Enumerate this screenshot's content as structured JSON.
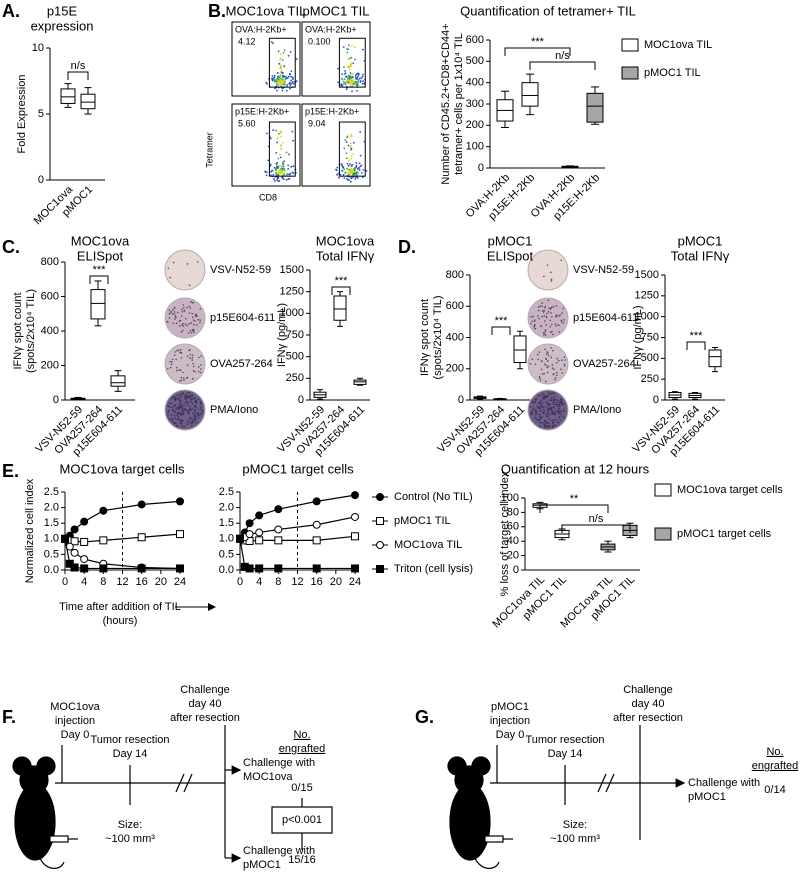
{
  "panel_labels": [
    "A.",
    "B.",
    "C.",
    "D.",
    "E.",
    "F.",
    "G."
  ],
  "flow": {
    "columns": [
      "MOC1ova TIL",
      "pMOC1 TIL"
    ],
    "y_label": "Tetramer",
    "x_label": "CD8",
    "gates": [
      {
        "label": "OVA:H-2Kb+",
        "value": "4.12"
      },
      {
        "label": "OVA:H-2Kb+",
        "value": "0.100"
      },
      {
        "label": "p15E:H-2Kb+",
        "value": "5.60"
      },
      {
        "label": "p15E:H-2Kb+",
        "value": "9.04"
      }
    ]
  },
  "elispot_c": [
    "VSV-N52-59",
    "p15E604-611",
    "OVA257-264",
    "PMA/Iono"
  ],
  "elispot_d": [
    "VSV-N52-59",
    "p15E604-611",
    "OVA257-264",
    "PMA/Iono"
  ],
  "chart_data": [
    {
      "type": "box",
      "title": [
        "p15E",
        "expression"
      ],
      "y_label": [
        "Fold Expression"
      ],
      "categories": [
        "MOC1ova",
        "pMOC1"
      ],
      "series": [
        {
          "color": "#ffffff",
          "values": [
            [
              5.5,
              5.8,
              6.3,
              6.9,
              7.3
            ],
            [
              5.0,
              5.4,
              5.9,
              6.5,
              7.0
            ]
          ]
        }
      ],
      "ylim": [
        0,
        10
      ],
      "yticks": [
        0,
        5,
        10
      ],
      "annotations": [
        "n/s"
      ]
    },
    {
      "type": "box",
      "title": [
        "Quantification of tetramer+ TIL"
      ],
      "y_label": [
        "Number of CD45.2+CD8+CD44+",
        "tetramer+ cells per 1x10⁴ TIL"
      ],
      "categories": [
        "OVA:H-2Kb",
        "p15E:H-2Kb",
        "OVA:H-2Kb",
        "p15E:H-2Kb"
      ],
      "series": [
        {
          "name": "MOC1ova TIL",
          "color": "#ffffff",
          "values": [
            [
              190,
              220,
              270,
              320,
              360
            ],
            [
              250,
              290,
              340,
              400,
              440
            ],
            null,
            null
          ]
        },
        {
          "name": "pMOC1 TIL",
          "color": "#a6a6a6",
          "values": [
            null,
            null,
            [
              0,
              2,
              5,
              8,
              10
            ],
            [
              205,
              215,
              290,
              350,
              380
            ]
          ]
        }
      ],
      "ylim": [
        0,
        600
      ],
      "yticks": [
        0,
        100,
        200,
        300,
        400,
        500,
        600
      ],
      "annotations": [
        "***",
        "n/s"
      ]
    },
    {
      "type": "box",
      "title": [
        "MOC1ova",
        "ELISpot"
      ],
      "y_label": [
        "IFNγ spot count",
        "(spots/2x10⁴ TIL)"
      ],
      "categories": [
        "VSV-N52-59",
        "OVA257-264",
        "p15E604-611"
      ],
      "series": [
        {
          "color": "#ffffff",
          "values": [
            [
              0,
              3,
              6,
              10,
              15
            ],
            [
              430,
              470,
              560,
              640,
              690
            ],
            [
              50,
              80,
              100,
              140,
              170
            ]
          ]
        }
      ],
      "ylim": [
        0,
        800
      ],
      "yticks": [
        0,
        200,
        400,
        600,
        800
      ],
      "annotations": [
        "***"
      ]
    },
    {
      "type": "box",
      "title": [
        "MOC1ova",
        "Total IFNγ"
      ],
      "y_label": [
        "IFNγ (pg/mL)"
      ],
      "categories": [
        "VSV-N52-59",
        "OVA257-264",
        "p15E604-611"
      ],
      "series": [
        {
          "color": "#ffffff",
          "values": [
            [
              10,
              30,
              60,
              90,
              120
            ],
            [
              850,
              920,
              1050,
              1200,
              1250
            ],
            [
              170,
              180,
              210,
              230,
              250
            ]
          ]
        }
      ],
      "ylim": [
        0,
        1500
      ],
      "yticks": [
        0,
        250,
        500,
        750,
        1000,
        1250,
        1500
      ],
      "annotations": [
        "***"
      ]
    },
    {
      "type": "box",
      "title": [
        "pMOC1",
        "ELISpot"
      ],
      "y_label": [
        "IFNγ spot count",
        "(spots/2x10⁴ TIL)"
      ],
      "categories": [
        "VSV-N52-59",
        "OVA257-264",
        "p15E604-611"
      ],
      "series": [
        {
          "color": "#ffffff",
          "values": [
            [
              5,
              10,
              15,
              20,
              25
            ],
            [
              0,
              2,
              5,
              8,
              10
            ],
            [
              200,
              240,
              320,
              410,
              440
            ]
          ]
        }
      ],
      "ylim": [
        0,
        800
      ],
      "yticks": [
        0,
        200,
        400,
        600,
        800
      ],
      "annotations": [
        "***"
      ]
    },
    {
      "type": "box",
      "title": [
        "pMOC1",
        "Total IFNγ"
      ],
      "y_label": [
        "IFNγ (pg/mL)"
      ],
      "categories": [
        "VSV-N52-59",
        "OVA257-264",
        "p15E604-611"
      ],
      "series": [
        {
          "color": "#ffffff",
          "values": [
            [
              10,
              30,
              60,
              90,
              100
            ],
            [
              10,
              30,
              55,
              80,
              90
            ],
            [
              340,
              400,
              520,
              600,
              630
            ]
          ]
        }
      ],
      "ylim": [
        0,
        1500
      ],
      "yticks": [
        0,
        250,
        500,
        750,
        1000,
        1250,
        1500
      ],
      "annotations": [
        "***"
      ]
    },
    {
      "type": "line",
      "title": [
        "MOC1ova target cells"
      ],
      "y_label": [
        "Normalized cell index"
      ],
      "x_label": [
        "Time after addition of TIL",
        "(hours)"
      ],
      "x": [
        0,
        1,
        2,
        4,
        8,
        16,
        24
      ],
      "xlim": [
        0,
        24
      ],
      "xticks": [
        0,
        4,
        8,
        12,
        16,
        20,
        24
      ],
      "vline": 12,
      "ylim": [
        0,
        2.5
      ],
      "yticks": [
        {
          "value": 0,
          "label": "0.0"
        },
        0.5,
        {
          "value": 1,
          "label": "1.0"
        },
        1.5,
        {
          "value": 2,
          "label": "2.0"
        },
        2.5
      ],
      "series": [
        {
          "color": "#000000",
          "marker": "circle",
          "marker_fill": "#000000",
          "values": [
            1.0,
            1.1,
            1.3,
            1.55,
            1.9,
            2.1,
            2.2
          ]
        },
        {
          "color": "#000000",
          "marker": "square",
          "marker_fill": "#ffffff",
          "values": [
            1.0,
            0.95,
            0.92,
            0.9,
            0.95,
            1.05,
            1.15
          ]
        },
        {
          "color": "#000000",
          "marker": "circle",
          "marker_fill": "#ffffff",
          "values": [
            1.0,
            0.75,
            0.55,
            0.35,
            0.2,
            0.08,
            0.05
          ]
        },
        {
          "color": "#000000",
          "marker": "square",
          "marker_fill": "#000000",
          "values": [
            1.0,
            0.2,
            0.08,
            0.05,
            0.05,
            0.05,
            0.05
          ]
        }
      ]
    },
    {
      "type": "line",
      "title": [
        "pMOC1 target cells"
      ],
      "x": [
        0,
        1,
        2,
        4,
        8,
        16,
        24
      ],
      "xlim": [
        0,
        24
      ],
      "xticks": [
        0,
        4,
        8,
        12,
        16,
        20,
        24
      ],
      "vline": 12,
      "ylim": [
        0,
        2.5
      ],
      "yticks": [
        {
          "value": 0,
          "label": "0.0"
        },
        0.5,
        {
          "value": 1,
          "label": "1.0"
        },
        1.5,
        {
          "value": 2,
          "label": "2.0"
        },
        2.5
      ],
      "series": [
        {
          "name": "Control (No TIL)",
          "color": "#000000",
          "marker": "circle",
          "marker_fill": "#000000",
          "values": [
            1.0,
            1.2,
            1.5,
            1.75,
            1.95,
            2.2,
            2.4
          ]
        },
        {
          "name": "pMOC1 TIL",
          "color": "#000000",
          "marker": "square",
          "marker_fill": "#ffffff",
          "values": [
            1.0,
            0.95,
            0.93,
            0.95,
            0.95,
            0.95,
            1.08
          ]
        },
        {
          "name": "MOC1ova TIL",
          "color": "#000000",
          "marker": "circle",
          "marker_fill": "#ffffff",
          "values": [
            1.0,
            1.05,
            1.15,
            1.2,
            1.3,
            1.45,
            1.7
          ]
        },
        {
          "name": "Triton (cell lysis)",
          "color": "#000000",
          "marker": "square",
          "marker_fill": "#000000",
          "values": [
            1.0,
            0.1,
            0.05,
            0.05,
            0.05,
            0.05,
            0.05
          ]
        }
      ]
    },
    {
      "type": "box",
      "title": [
        "Quantification at 12 hours"
      ],
      "y_label": [
        "% loss of target cell index"
      ],
      "categories": [
        "MOC1ova TIL",
        "pMOC1 TIL",
        "MOC1ova TIL",
        "pMOC1 TIL"
      ],
      "series": [
        {
          "name": "MOC1ova target cells",
          "color": "#ffffff",
          "values": [
            [
              85,
              87,
              90,
              92,
              94
            ],
            [
              42,
              45,
              50,
              55,
              57
            ],
            null,
            null
          ]
        },
        {
          "name": "pMOC1 target cells",
          "color": "#a6a6a6",
          "values": [
            null,
            null,
            [
              25,
              28,
              32,
              36,
              40
            ],
            [
              45,
              48,
              55,
              62,
              65
            ]
          ]
        }
      ],
      "ylim": [
        0,
        100
      ],
      "yticks": [
        0,
        20,
        40,
        60,
        80,
        100
      ],
      "annotations": [
        "**",
        "n/s"
      ]
    }
  ],
  "schematic_f": {
    "injection": [
      "MOC1ova",
      "injection",
      "Day 0"
    ],
    "resection": [
      "Tumor resection",
      "Day 14"
    ],
    "size": [
      "Size:",
      "~100 mm³"
    ],
    "challenge": [
      "Challenge",
      "day 40",
      "after resection"
    ],
    "engrafted_header": [
      "No.",
      "engrafted"
    ],
    "arms": [
      {
        "label": [
          "Challenge with",
          "MOC1ova"
        ],
        "engrafted": "0/15"
      },
      {
        "label": [
          "Challenge with",
          "pMOC1"
        ],
        "engrafted": "15/16"
      }
    ],
    "p_value": "p<0.001"
  },
  "schematic_g": {
    "injection": [
      "pMOC1",
      "injection",
      "Day 0"
    ],
    "resection": [
      "Tumor resection",
      "Day 14"
    ],
    "size": [
      "Size:",
      "~100 mm³"
    ],
    "challenge": [
      "Challenge",
      "day 40",
      "after resection"
    ],
    "engrafted_header": [
      "No.",
      "engrafted"
    ],
    "arms": [
      {
        "label": [
          "Challenge with",
          "pMOC1"
        ],
        "engrafted": "0/14"
      }
    ]
  }
}
